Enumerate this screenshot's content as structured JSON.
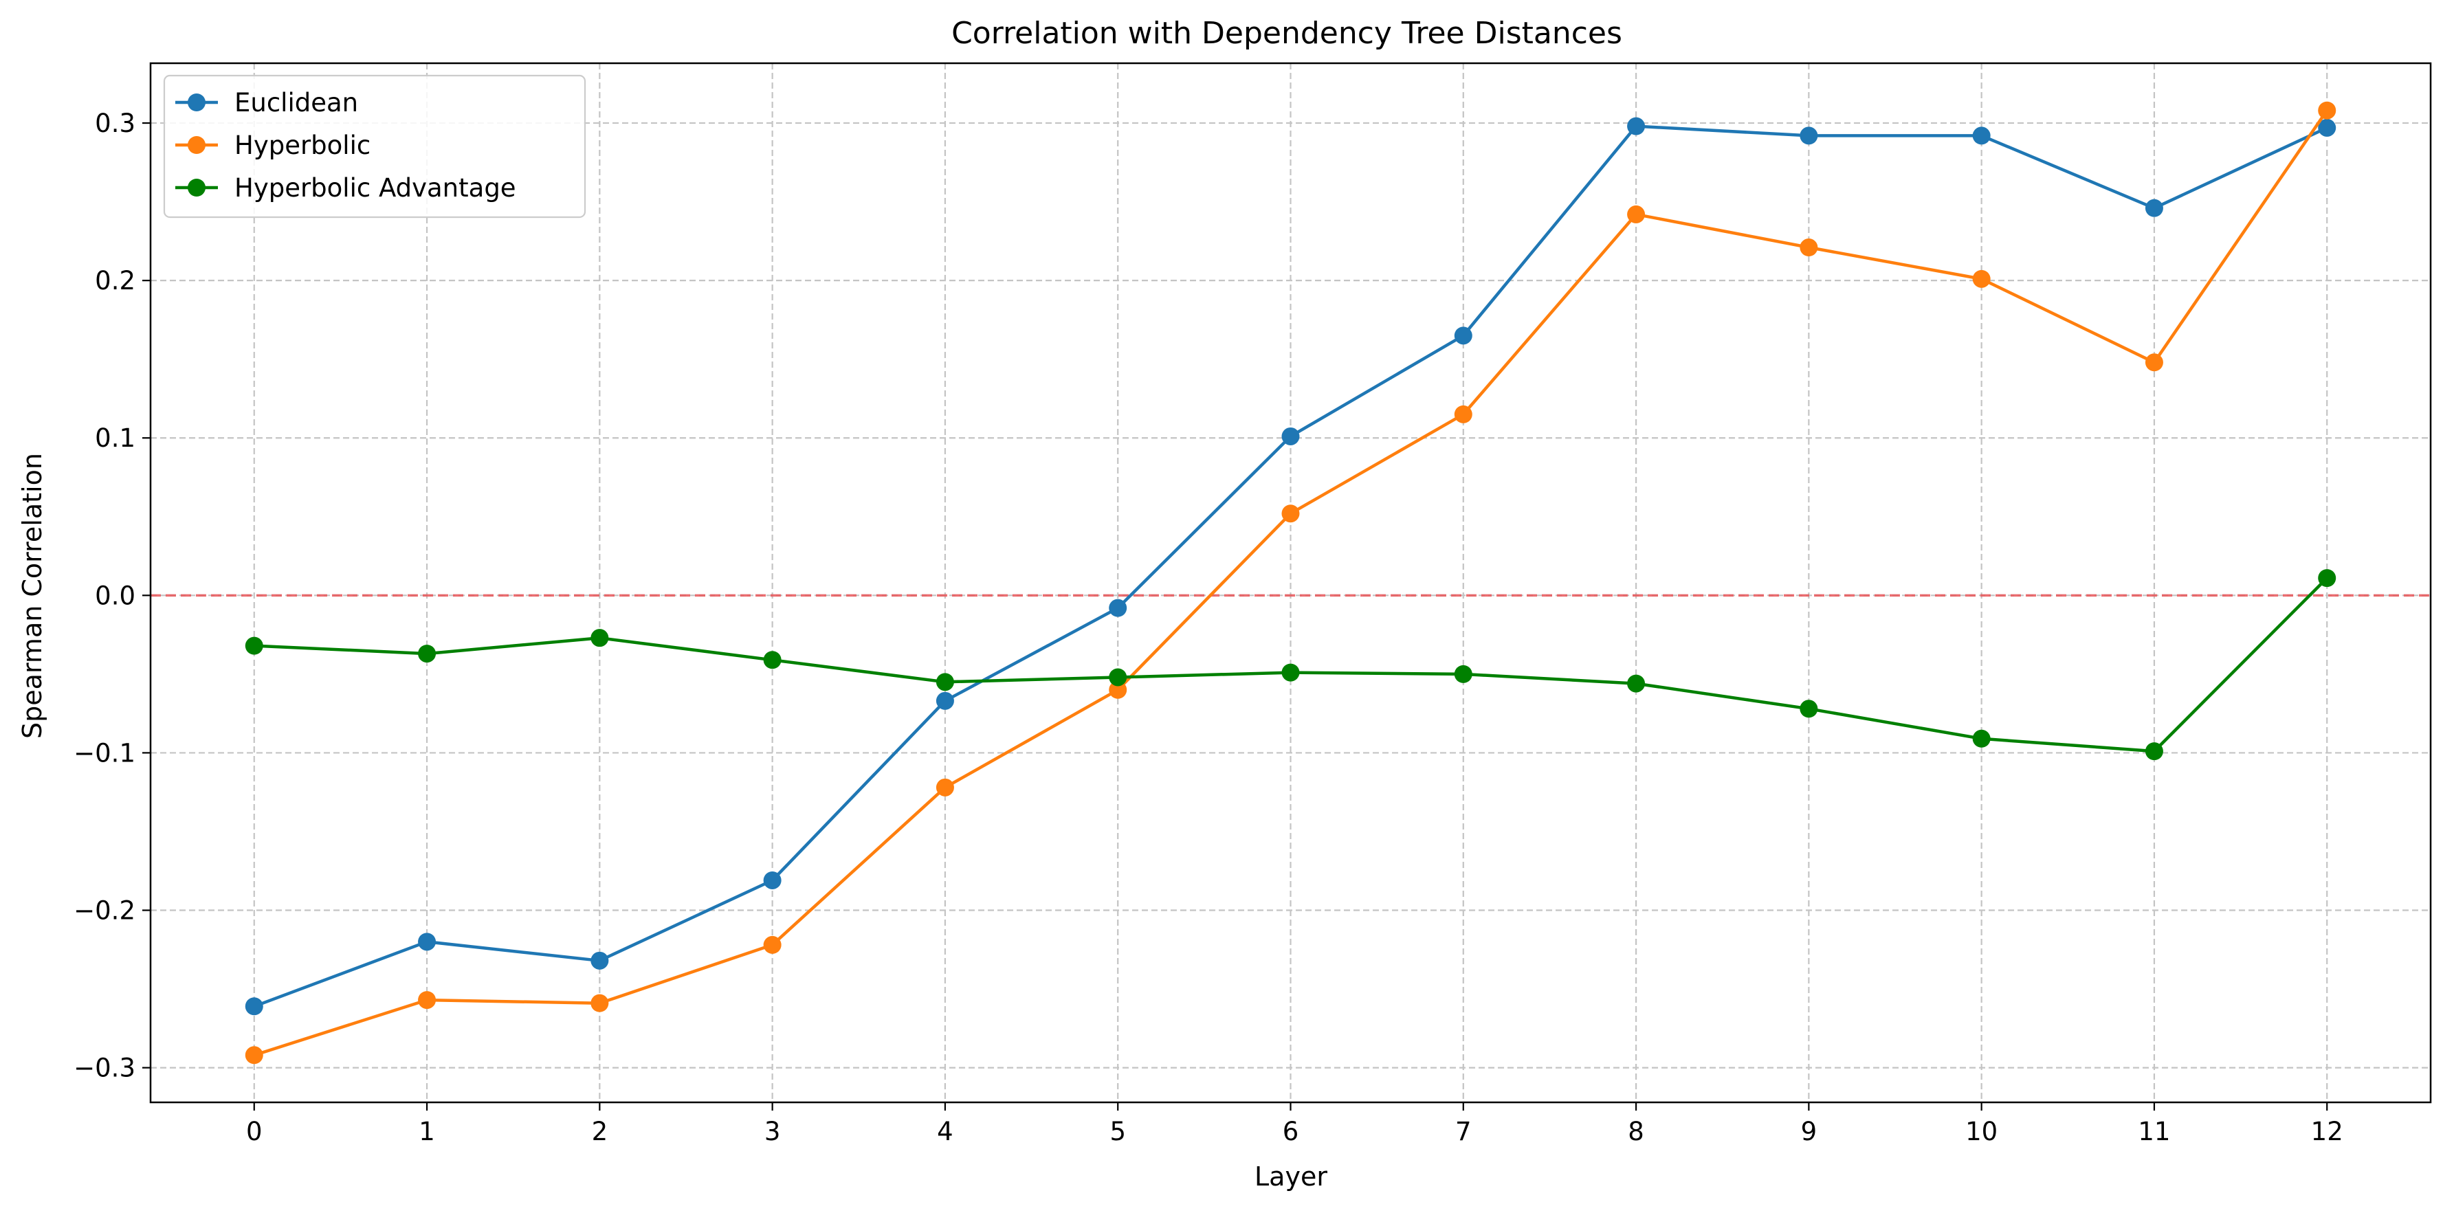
{
  "chart_data": {
    "type": "line",
    "title": "Correlation with Dependency Tree Distances",
    "xlabel": "Layer",
    "ylabel": "Spearman Correlation",
    "x": [
      0,
      1,
      2,
      3,
      4,
      5,
      6,
      7,
      8,
      9,
      10,
      11,
      12
    ],
    "xlim": [
      -0.6,
      12.6
    ],
    "ylim": [
      -0.322,
      0.338
    ],
    "yticks": [
      -0.3,
      -0.2,
      -0.1,
      0.0,
      0.1,
      0.2,
      0.3
    ],
    "ytick_labels": [
      "−0.3",
      "−0.2",
      "−0.1",
      "0.0",
      "0.1",
      "0.2",
      "0.3"
    ],
    "grid": true,
    "legend_position": "top-left",
    "reference_line": {
      "y": 0.0,
      "color": "#e8575a",
      "style": "dashed"
    },
    "series": [
      {
        "name": "Euclidean",
        "color": "#1f77b4",
        "values": [
          -0.261,
          -0.22,
          -0.232,
          -0.181,
          -0.067,
          -0.008,
          0.101,
          0.165,
          0.298,
          0.292,
          0.292,
          0.246,
          0.297
        ]
      },
      {
        "name": "Hyperbolic",
        "color": "#ff7f0e",
        "values": [
          -0.292,
          -0.257,
          -0.259,
          -0.222,
          -0.122,
          -0.06,
          0.052,
          0.115,
          0.242,
          0.221,
          0.201,
          0.148,
          0.308
        ]
      },
      {
        "name": "Hyperbolic Advantage",
        "color": "#008000",
        "values": [
          -0.032,
          -0.037,
          -0.027,
          -0.041,
          -0.055,
          -0.052,
          -0.049,
          -0.05,
          -0.056,
          -0.072,
          -0.091,
          -0.099,
          0.011
        ]
      }
    ]
  }
}
